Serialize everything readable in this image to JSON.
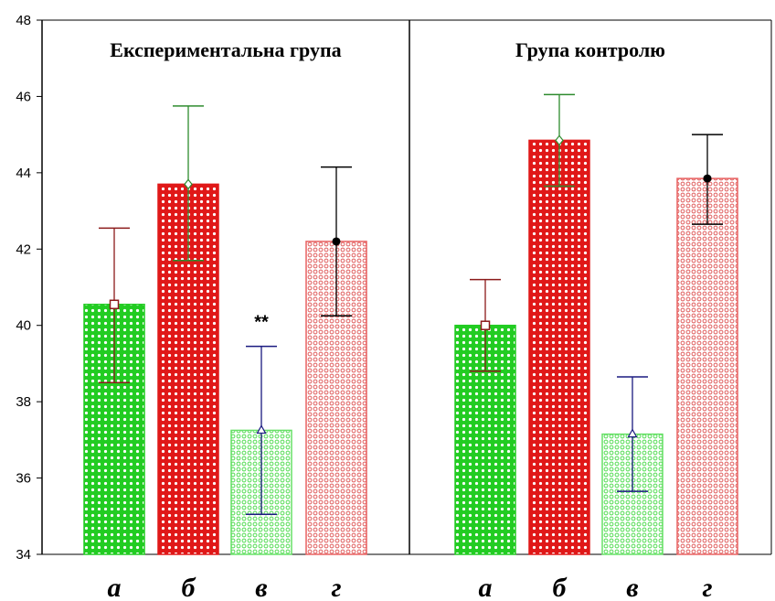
{
  "chart_data": {
    "type": "bar",
    "ylim": [
      34,
      48
    ],
    "yticks": [
      34,
      36,
      38,
      40,
      42,
      44,
      46,
      48
    ],
    "grid": false,
    "colors": {
      "green_dark": "#22cc22",
      "red_dark": "#e01818",
      "green_light": "#66e066",
      "red_light": "#e86060",
      "err_a": "#8b1a1a",
      "err_b": "#2e8b2e",
      "err_c": "#1a1a80",
      "err_d": "#000000"
    },
    "panels": [
      {
        "title": "Експериментальна група",
        "categories": [
          "а",
          "б",
          "в",
          "г"
        ],
        "values": [
          40.55,
          43.7,
          37.25,
          42.2
        ],
        "err_upper": [
          42.55,
          45.75,
          39.45,
          44.15
        ],
        "err_lower": [
          38.5,
          41.7,
          35.05,
          40.25
        ],
        "markers": [
          "square",
          "diamond",
          "triangle",
          "circle"
        ],
        "annotations": [
          {
            "category": "в",
            "text": "**"
          }
        ]
      },
      {
        "title": "Група контролю",
        "categories": [
          "а",
          "б",
          "в",
          "г"
        ],
        "values": [
          40.0,
          44.85,
          37.15,
          43.85
        ],
        "err_upper": [
          41.2,
          46.05,
          38.65,
          45.0
        ],
        "err_lower": [
          38.8,
          43.65,
          35.65,
          42.65
        ],
        "markers": [
          "square",
          "diamond",
          "triangle",
          "circle"
        ],
        "annotations": []
      }
    ]
  }
}
